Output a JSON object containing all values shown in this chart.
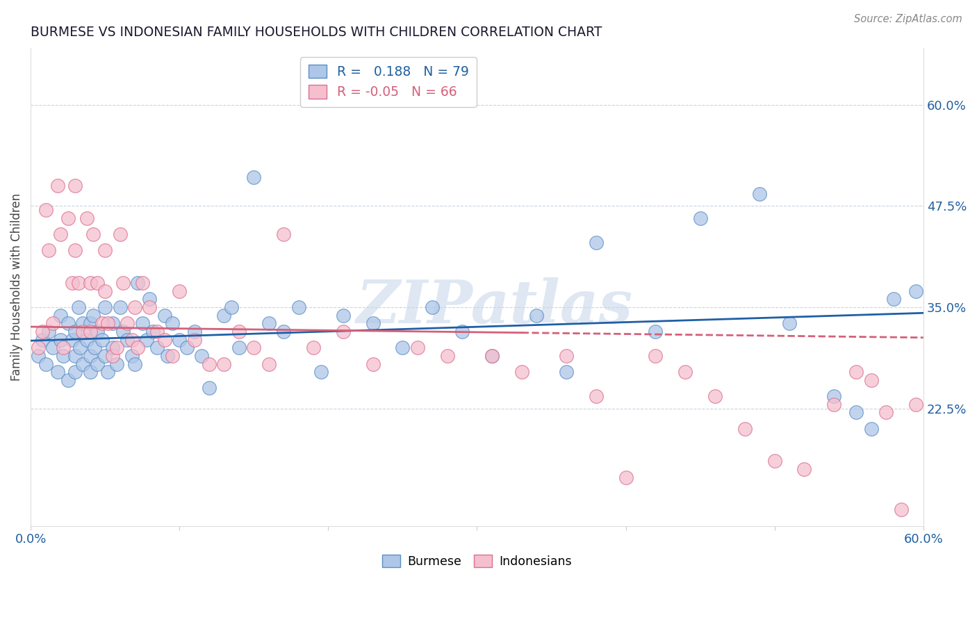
{
  "title": "BURMESE VS INDONESIAN FAMILY HOUSEHOLDS WITH CHILDREN CORRELATION CHART",
  "source": "Source: ZipAtlas.com",
  "ylabel": "Family Households with Children",
  "y_ticks_right": [
    0.225,
    0.35,
    0.475,
    0.6
  ],
  "y_tick_labels_right": [
    "22.5%",
    "35.0%",
    "47.5%",
    "60.0%"
  ],
  "xlim": [
    0.0,
    0.6
  ],
  "ylim": [
    0.08,
    0.67
  ],
  "burmese_R": 0.188,
  "burmese_N": 79,
  "indonesian_R": -0.05,
  "indonesian_N": 66,
  "burmese_color": "#aec6e8",
  "burmese_edge_color": "#5b8ec4",
  "burmese_line_color": "#1f5fa6",
  "indonesian_color": "#f5bfce",
  "indonesian_edge_color": "#d97090",
  "indonesian_line_color": "#d4607a",
  "watermark": "ZIPatlas",
  "watermark_color": "#c8d8ea",
  "legend_label_burmese": "Burmese",
  "legend_label_indonesian": "Indonesians",
  "burmese_x": [
    0.005,
    0.008,
    0.01,
    0.012,
    0.015,
    0.018,
    0.02,
    0.02,
    0.022,
    0.025,
    0.025,
    0.028,
    0.03,
    0.03,
    0.03,
    0.032,
    0.033,
    0.035,
    0.035,
    0.038,
    0.04,
    0.04,
    0.04,
    0.042,
    0.043,
    0.045,
    0.045,
    0.048,
    0.05,
    0.05,
    0.052,
    0.055,
    0.055,
    0.058,
    0.06,
    0.062,
    0.065,
    0.068,
    0.07,
    0.072,
    0.075,
    0.078,
    0.08,
    0.082,
    0.085,
    0.09,
    0.092,
    0.095,
    0.1,
    0.105,
    0.11,
    0.115,
    0.12,
    0.13,
    0.135,
    0.14,
    0.15,
    0.16,
    0.17,
    0.18,
    0.195,
    0.21,
    0.23,
    0.25,
    0.27,
    0.29,
    0.31,
    0.34,
    0.36,
    0.38,
    0.42,
    0.45,
    0.49,
    0.51,
    0.54,
    0.555,
    0.565,
    0.58,
    0.595
  ],
  "burmese_y": [
    0.29,
    0.31,
    0.28,
    0.32,
    0.3,
    0.27,
    0.31,
    0.34,
    0.29,
    0.33,
    0.26,
    0.31,
    0.29,
    0.32,
    0.27,
    0.35,
    0.3,
    0.28,
    0.33,
    0.31,
    0.29,
    0.33,
    0.27,
    0.34,
    0.3,
    0.28,
    0.32,
    0.31,
    0.29,
    0.35,
    0.27,
    0.33,
    0.3,
    0.28,
    0.35,
    0.32,
    0.31,
    0.29,
    0.28,
    0.38,
    0.33,
    0.31,
    0.36,
    0.32,
    0.3,
    0.34,
    0.29,
    0.33,
    0.31,
    0.3,
    0.32,
    0.29,
    0.25,
    0.34,
    0.35,
    0.3,
    0.51,
    0.33,
    0.32,
    0.35,
    0.27,
    0.34,
    0.33,
    0.3,
    0.35,
    0.32,
    0.29,
    0.34,
    0.27,
    0.43,
    0.32,
    0.46,
    0.49,
    0.33,
    0.24,
    0.22,
    0.2,
    0.36,
    0.37
  ],
  "indonesian_x": [
    0.005,
    0.008,
    0.01,
    0.012,
    0.015,
    0.018,
    0.02,
    0.022,
    0.025,
    0.028,
    0.03,
    0.03,
    0.032,
    0.035,
    0.038,
    0.04,
    0.04,
    0.042,
    0.045,
    0.048,
    0.05,
    0.05,
    0.052,
    0.055,
    0.058,
    0.06,
    0.062,
    0.065,
    0.068,
    0.07,
    0.072,
    0.075,
    0.08,
    0.085,
    0.09,
    0.095,
    0.1,
    0.11,
    0.12,
    0.13,
    0.14,
    0.15,
    0.16,
    0.17,
    0.19,
    0.21,
    0.23,
    0.26,
    0.28,
    0.31,
    0.33,
    0.36,
    0.38,
    0.4,
    0.42,
    0.44,
    0.46,
    0.48,
    0.5,
    0.52,
    0.54,
    0.555,
    0.565,
    0.575,
    0.585,
    0.595
  ],
  "indonesian_y": [
    0.3,
    0.32,
    0.47,
    0.42,
    0.33,
    0.5,
    0.44,
    0.3,
    0.46,
    0.38,
    0.5,
    0.42,
    0.38,
    0.32,
    0.46,
    0.38,
    0.32,
    0.44,
    0.38,
    0.33,
    0.42,
    0.37,
    0.33,
    0.29,
    0.3,
    0.44,
    0.38,
    0.33,
    0.31,
    0.35,
    0.3,
    0.38,
    0.35,
    0.32,
    0.31,
    0.29,
    0.37,
    0.31,
    0.28,
    0.28,
    0.32,
    0.3,
    0.28,
    0.44,
    0.3,
    0.32,
    0.28,
    0.3,
    0.29,
    0.29,
    0.27,
    0.29,
    0.24,
    0.14,
    0.29,
    0.27,
    0.24,
    0.2,
    0.16,
    0.15,
    0.23,
    0.27,
    0.26,
    0.22,
    0.1,
    0.23
  ]
}
